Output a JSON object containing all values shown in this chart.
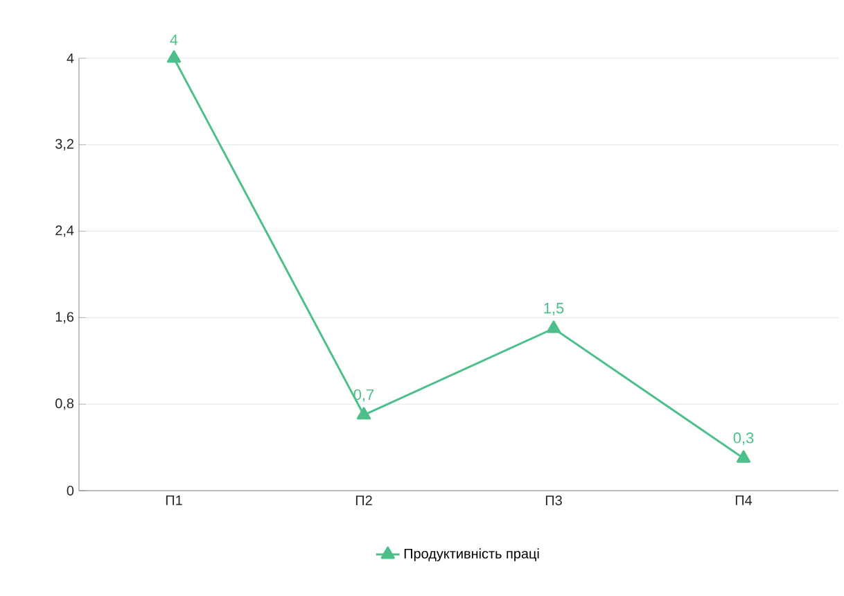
{
  "chart_data": {
    "type": "line",
    "categories": [
      "П1",
      "П2",
      "П3",
      "П4"
    ],
    "series": [
      {
        "name": "Продуктивність праці",
        "color": "#4dbf8a",
        "values": [
          4,
          0.7,
          1.5,
          0.3
        ],
        "value_labels": [
          "4",
          "0,7",
          "1,5",
          "0,3"
        ]
      }
    ],
    "ylim": [
      0,
      4
    ],
    "yticks": [
      0,
      {
        "value": 0.8,
        "label": "0,8"
      },
      {
        "value": 1.6,
        "label": "1,6"
      },
      {
        "value": 2.4,
        "label": "2,4"
      },
      {
        "value": 3.2,
        "label": "3,2"
      },
      4
    ],
    "grid": "y",
    "legend": "bottom",
    "marker": "triangle",
    "line_style": "solid"
  }
}
